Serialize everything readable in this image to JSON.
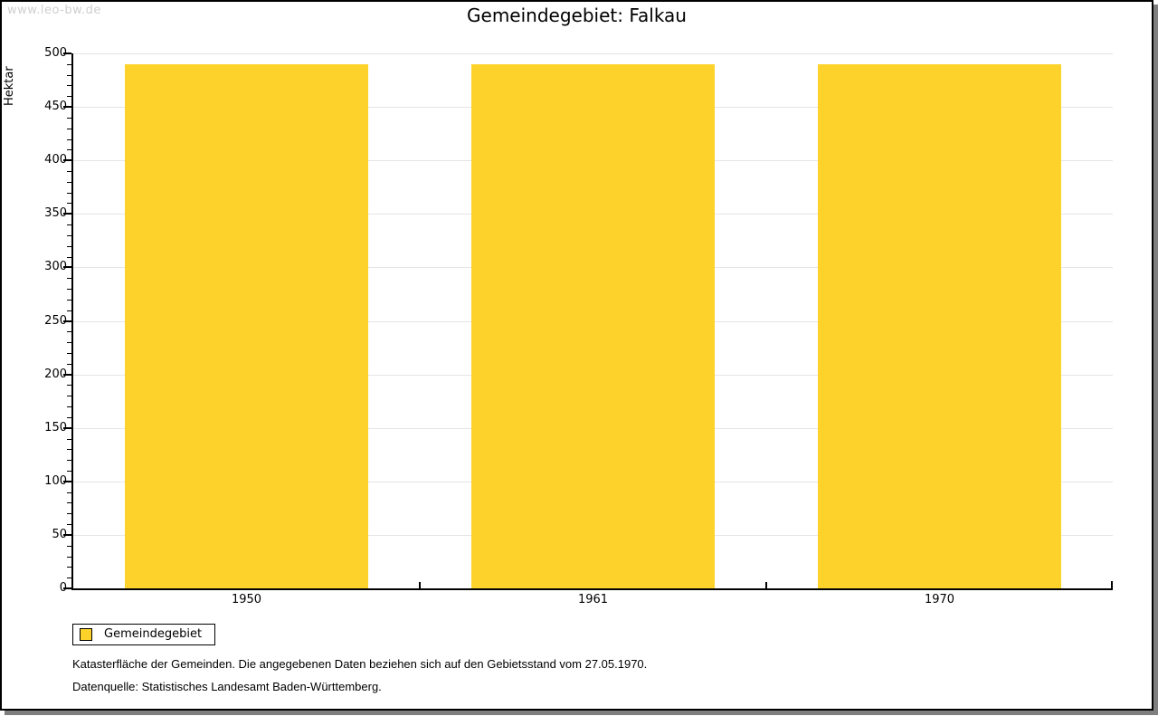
{
  "watermark": "www.leo-bw.de",
  "chart_data": {
    "type": "bar",
    "title": "Gemeindegebiet: Falkau",
    "categories": [
      "1950",
      "1961",
      "1970"
    ],
    "series": [
      {
        "name": "Gemeindegebiet",
        "values": [
          490,
          490,
          490
        ]
      }
    ],
    "xlabel": "",
    "ylabel": "Hektar",
    "ylim": [
      0,
      500
    ],
    "y_major_step": 50,
    "y_minor_step": 10,
    "grid": "horizontal-major-only",
    "legend_position": "bottom-left",
    "bar_color": "#FDD32B",
    "gridline_color": "#e4e4e4"
  },
  "legend": {
    "label": "Gemeindegebiet"
  },
  "footer": {
    "line1": "Katasterfläche der Gemeinden. Die angegebenen Daten beziehen sich auf den Gebietsstand vom 27.05.1970.",
    "line2": "Datenquelle: Statistisches Landesamt Baden-Württemberg."
  }
}
